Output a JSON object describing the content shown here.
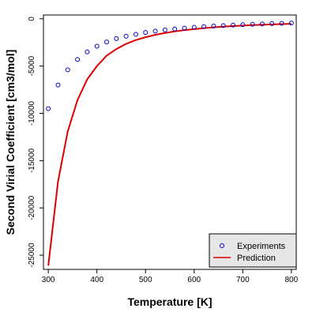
{
  "chart_data": {
    "type": "scatter",
    "xlabel": "Temperature [K]",
    "ylabel": "Second Virial Coefficient [cm3/mol]",
    "xlim": [
      290,
      810
    ],
    "ylim": [
      -26500,
      400
    ],
    "x_ticks": [
      300,
      400,
      500,
      600,
      700,
      800
    ],
    "y_ticks": [
      0,
      -5000,
      -10000,
      -15000,
      -20000,
      -25000
    ],
    "x_tick_labels": [
      "300",
      "400",
      "500",
      "600",
      "700",
      "800"
    ],
    "y_tick_labels": [
      "0",
      "-5000",
      "-10000",
      "-15000",
      "-20000",
      "-25000"
    ],
    "grid": false,
    "legend_position": "bottom-right",
    "series": [
      {
        "name": "Experiments",
        "kind": "points",
        "color": "#0000cc",
        "x": [
          300,
          320,
          340,
          360,
          380,
          400,
          420,
          440,
          460,
          480,
          500,
          520,
          540,
          560,
          580,
          600,
          620,
          640,
          660,
          680,
          700,
          720,
          740,
          760,
          780,
          800
        ],
        "y": [
          -9500,
          -7000,
          -5400,
          -4300,
          -3500,
          -2900,
          -2450,
          -2100,
          -1850,
          -1650,
          -1450,
          -1300,
          -1180,
          -1080,
          -990,
          -900,
          -830,
          -770,
          -720,
          -670,
          -620,
          -580,
          -540,
          -510,
          -480,
          -450
        ]
      },
      {
        "name": "Prediction",
        "kind": "line",
        "color": "#dd0000",
        "x": [
          300,
          320,
          340,
          360,
          380,
          400,
          420,
          440,
          460,
          480,
          500,
          520,
          540,
          560,
          580,
          600,
          620,
          640,
          660,
          680,
          700,
          720,
          740,
          760,
          780,
          800
        ],
        "y": [
          -26100,
          -17200,
          -11900,
          -8600,
          -6400,
          -5000,
          -3900,
          -3200,
          -2650,
          -2250,
          -1950,
          -1700,
          -1500,
          -1330,
          -1200,
          -1090,
          -990,
          -900,
          -830,
          -770,
          -720,
          -670,
          -630,
          -590,
          -560,
          -530
        ]
      }
    ],
    "legend": [
      "Experiments",
      "Prediction"
    ]
  }
}
